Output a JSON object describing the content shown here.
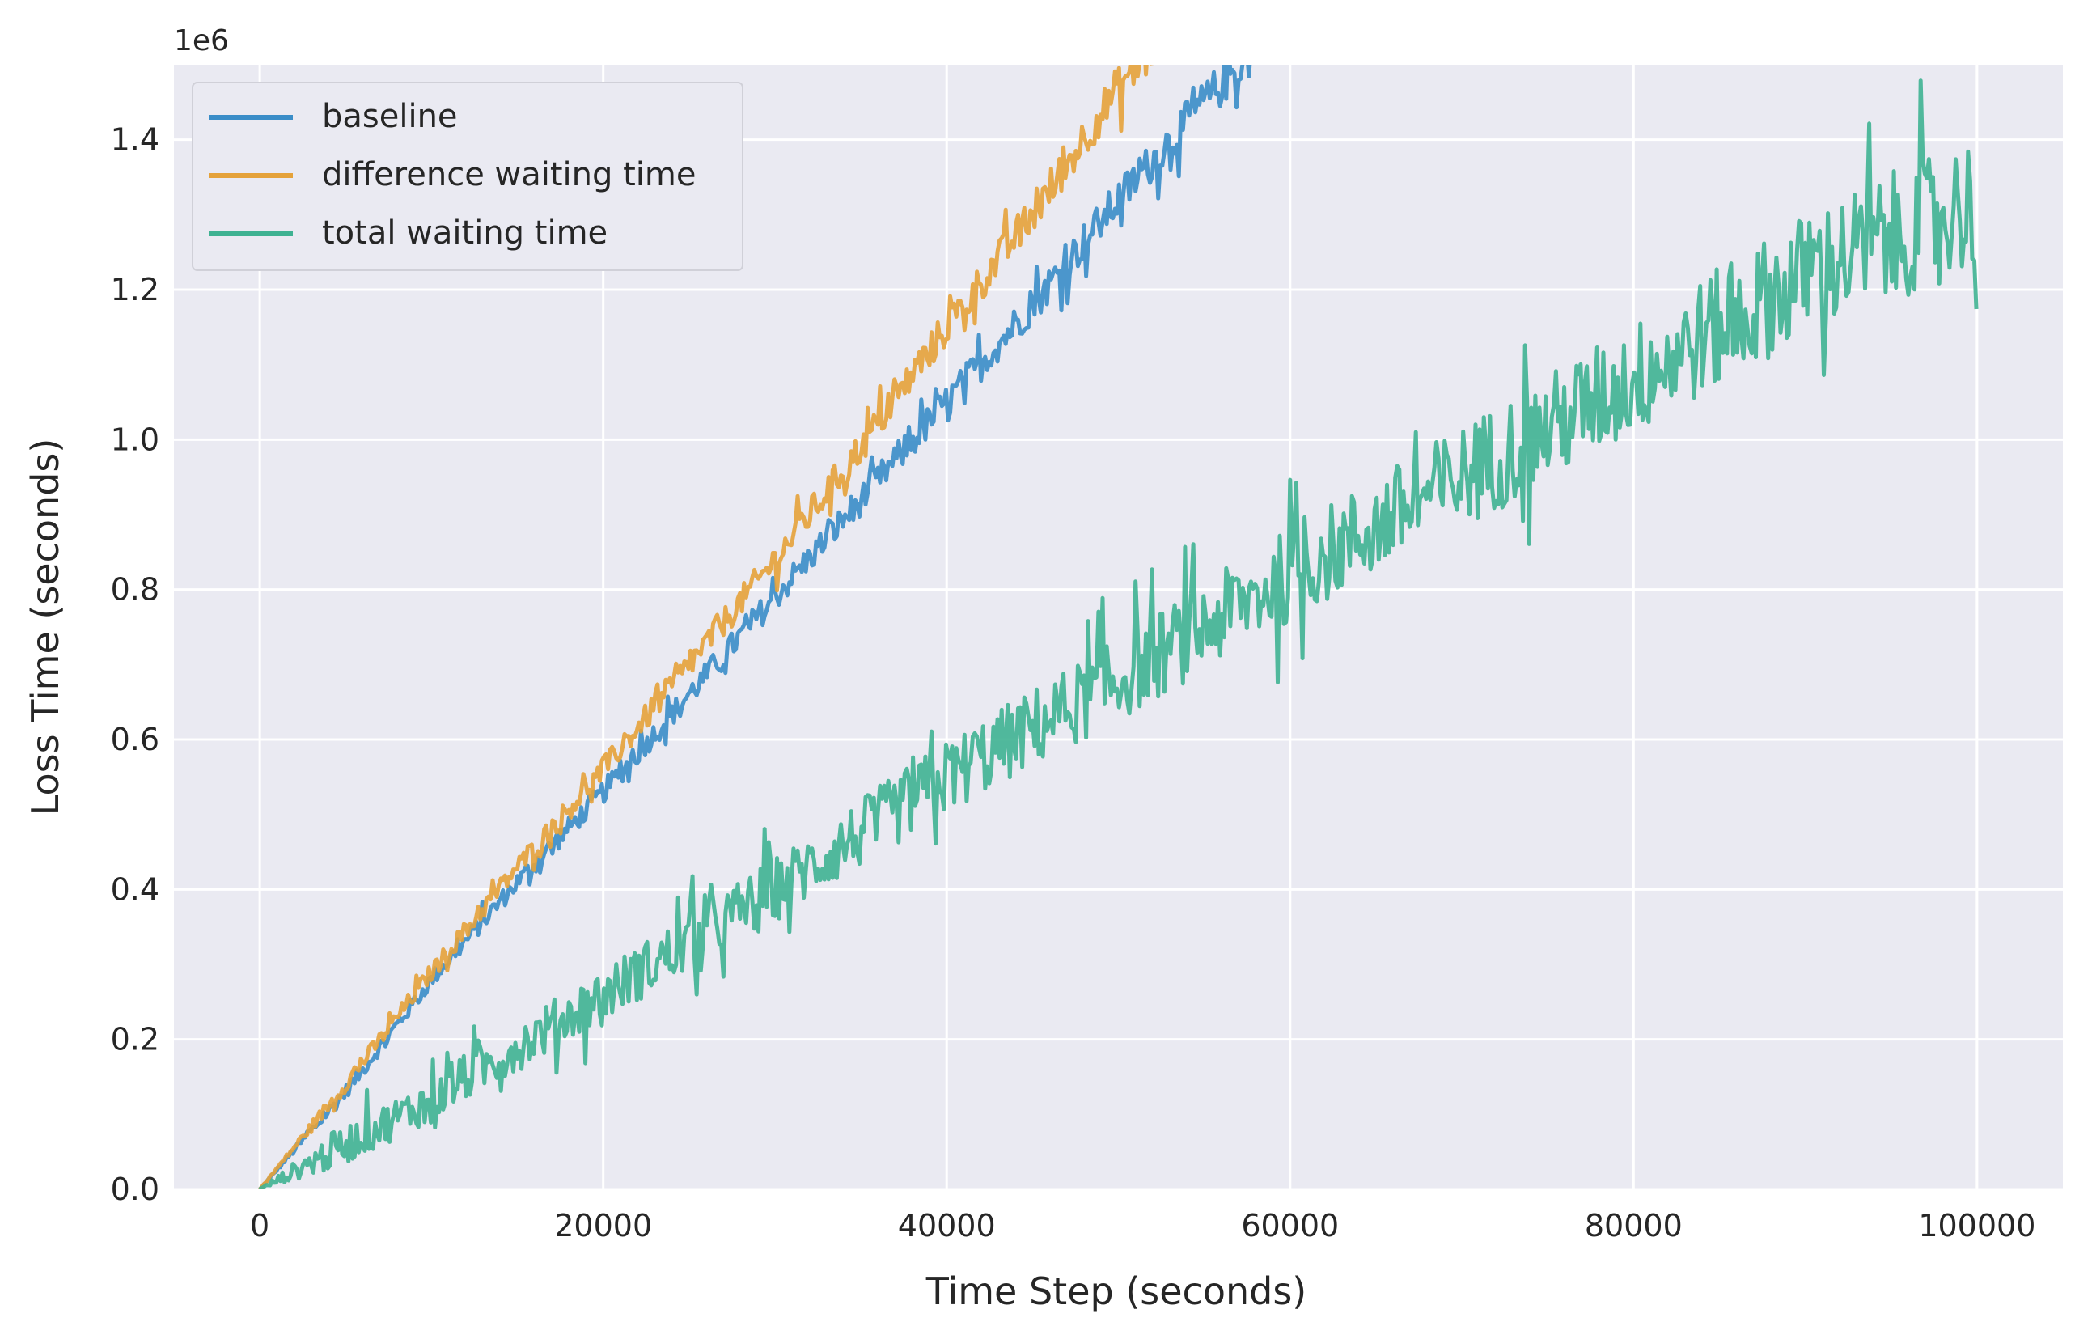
{
  "chart_data": {
    "type": "line",
    "title": "",
    "xlabel": "Time Step (seconds)",
    "ylabel": "Loss Time (seconds)",
    "y_scale_label": "1e6",
    "xlim": [
      -5000,
      105000
    ],
    "ylim": [
      0,
      1.5
    ],
    "y_multiplier": 1000000,
    "x_ticks": [
      0,
      20000,
      40000,
      60000,
      80000,
      100000
    ],
    "x_tick_labels": [
      "0",
      "20000",
      "40000",
      "60000",
      "80000",
      "100000"
    ],
    "y_ticks": [
      0,
      0.2,
      0.4,
      0.6,
      0.8,
      1.0,
      1.2,
      1.4
    ],
    "y_tick_labels": [
      "0.0",
      "0.2",
      "0.4",
      "0.6",
      "0.8",
      "1.0",
      "1.2",
      "1.4"
    ],
    "grid": true,
    "legend_position": "top-left",
    "series": [
      {
        "name": "baseline",
        "color": "#3a8dc8",
        "x": [
          0,
          5000,
          10000,
          15000,
          20000,
          25000,
          30000,
          35000,
          40000,
          45000,
          50000,
          55000,
          58000
        ],
        "y": [
          0.0,
          0.13,
          0.28,
          0.41,
          0.53,
          0.66,
          0.79,
          0.92,
          1.05,
          1.18,
          1.32,
          1.45,
          1.52
        ],
        "noise": 0.03
      },
      {
        "name": "difference waiting time",
        "color": "#e5a23a",
        "x": [
          0,
          5000,
          10000,
          15000,
          20000,
          25000,
          30000,
          35000,
          40000,
          45000,
          50000,
          52000
        ],
        "y": [
          0.0,
          0.14,
          0.29,
          0.43,
          0.56,
          0.7,
          0.84,
          0.99,
          1.15,
          1.3,
          1.47,
          1.52
        ],
        "noise": 0.03
      },
      {
        "name": "total waiting time",
        "color": "#3fb292",
        "x": [
          0,
          10000,
          20000,
          30000,
          40000,
          50000,
          60000,
          70000,
          80000,
          90000,
          100000
        ],
        "y": [
          0.0,
          0.12,
          0.26,
          0.4,
          0.55,
          0.68,
          0.82,
          0.95,
          1.08,
          1.22,
          1.32
        ],
        "noise": 0.09
      }
    ]
  }
}
